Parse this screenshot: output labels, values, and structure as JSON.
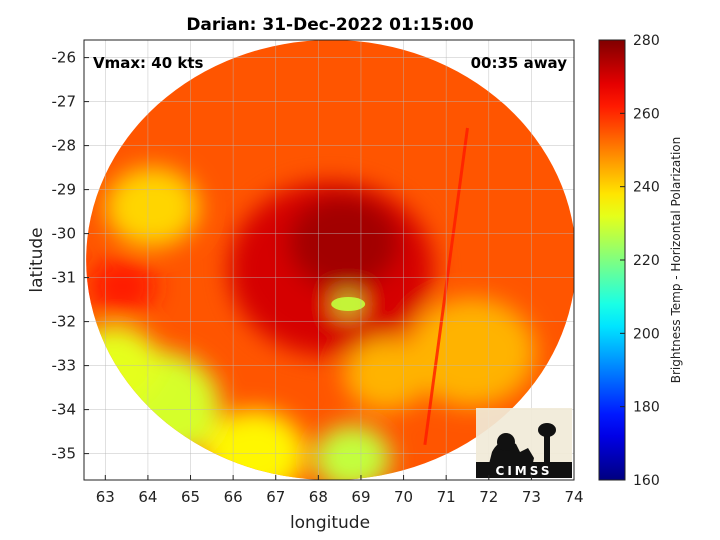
{
  "chart_data": {
    "type": "heatmap",
    "title": "Darian: 31-Dec-2022 01:15:00",
    "xlabel": "longitude",
    "ylabel": "latitude",
    "xlim": [
      62.5,
      74.0
    ],
    "ylim": [
      -35.6,
      -25.6
    ],
    "xticks": [
      63,
      64,
      65,
      66,
      67,
      68,
      69,
      70,
      71,
      72,
      73,
      74
    ],
    "yticks": [
      -26,
      -27,
      -28,
      -29,
      -30,
      -31,
      -32,
      -33,
      -34,
      -35
    ],
    "grid": true,
    "annotations": {
      "top_left": "Vmax: 40 kts",
      "top_right": "00:35 away"
    },
    "colorbar": {
      "label": "Brightness Temp - Horizontal Polarization",
      "range": [
        160,
        280
      ],
      "ticks": [
        280,
        260,
        240,
        220,
        200,
        180,
        160
      ],
      "colormap": "jet"
    },
    "swath": {
      "center": [
        68.3,
        -30.6
      ],
      "radius_lon": 5.75,
      "radius_lat": 5.0,
      "edge_line": [
        [
          71.5,
          -27.6
        ],
        [
          70.5,
          -34.8
        ]
      ]
    },
    "storm_center": [
      68.3,
      -30.9
    ],
    "features": [
      {
        "lon": 68.3,
        "lat": -30.8,
        "r": 2.4,
        "value": 270
      },
      {
        "lon": 68.6,
        "lat": -30.2,
        "r": 1.3,
        "value": 276
      },
      {
        "lon": 68.7,
        "lat": -31.6,
        "r": 0.25,
        "value": 228
      },
      {
        "lon": 64.2,
        "lat": -33.9,
        "r": 1.5,
        "value": 230
      },
      {
        "lon": 63.2,
        "lat": -33.0,
        "r": 1.1,
        "value": 232
      },
      {
        "lon": 66.5,
        "lat": -35.0,
        "r": 1.2,
        "value": 236
      },
      {
        "lon": 68.8,
        "lat": -35.1,
        "r": 0.9,
        "value": 228
      },
      {
        "lon": 64.1,
        "lat": -29.4,
        "r": 1.1,
        "value": 240
      },
      {
        "lon": 71.6,
        "lat": -32.7,
        "r": 1.5,
        "value": 244
      },
      {
        "lon": 69.6,
        "lat": -33.2,
        "r": 1.0,
        "value": 244
      },
      {
        "lon": 63.4,
        "lat": -31.2,
        "r": 0.8,
        "value": 262
      }
    ],
    "logo_text": "CIMSS"
  }
}
